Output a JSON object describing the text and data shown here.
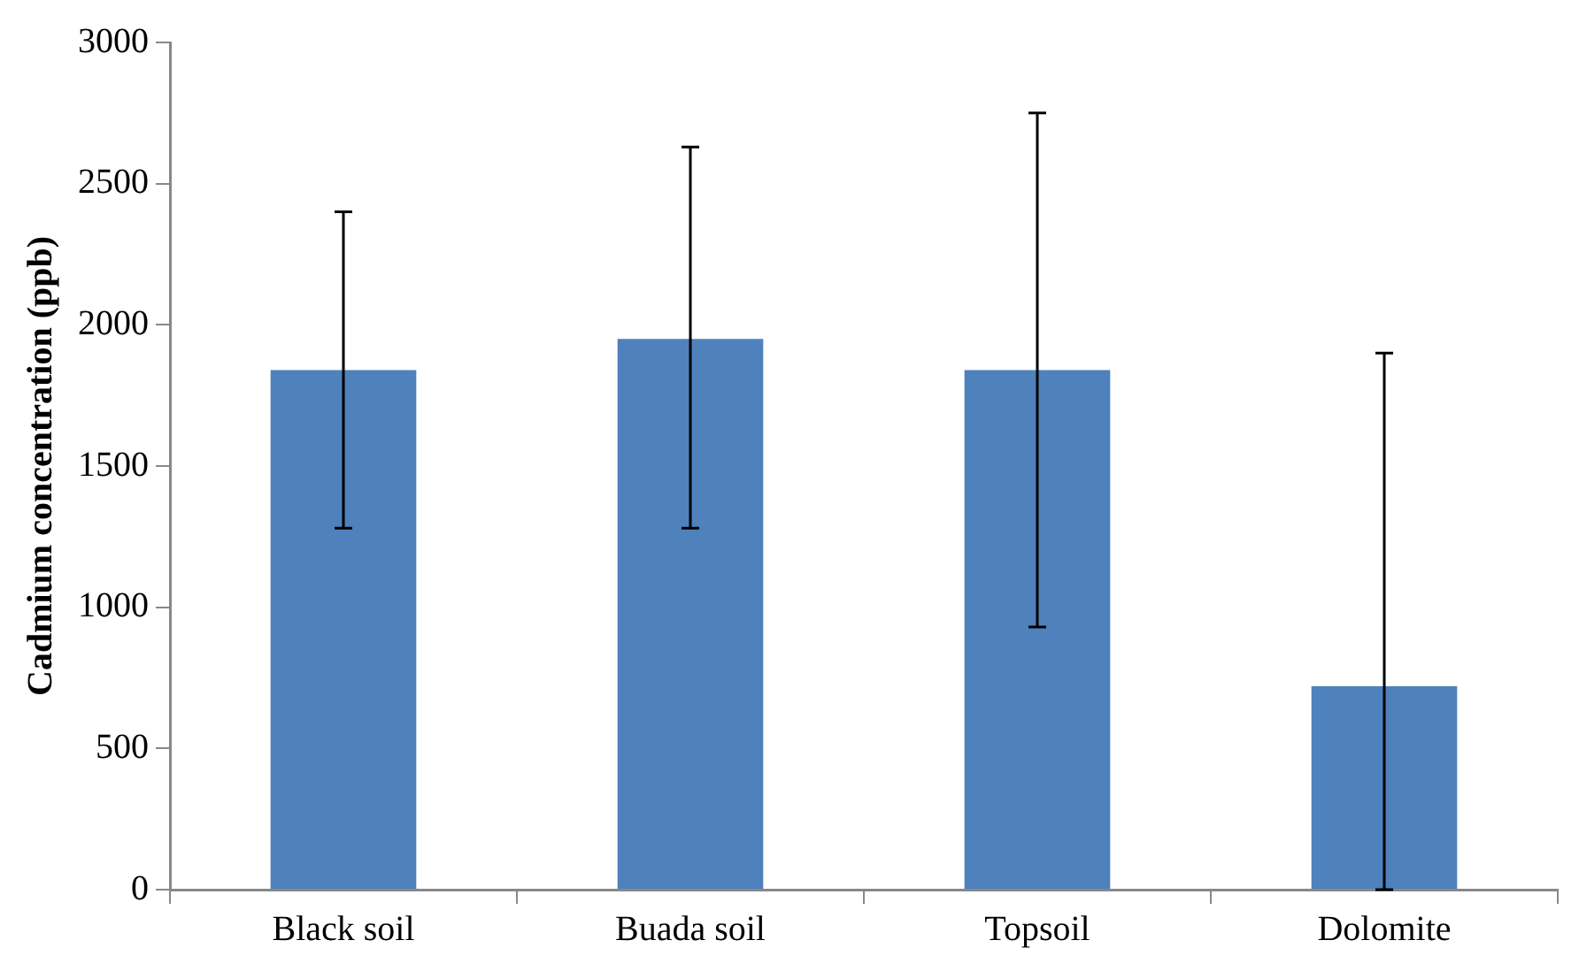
{
  "chart_data": {
    "type": "bar",
    "ylabel": "Cadmium concentration (ppb)",
    "categories": [
      "Black soil",
      "Buada soil",
      "Topsoil",
      "Dolomite"
    ],
    "values": [
      1840,
      1950,
      1840,
      720
    ],
    "errors": [
      [
        1280,
        2400
      ],
      [
        1280,
        2630
      ],
      [
        930,
        2750
      ],
      [
        0,
        1900
      ]
    ],
    "color": "#4f81bd",
    "ylim": [
      0,
      3000
    ],
    "yticks": [
      0,
      500,
      1000,
      1500,
      2000,
      2500,
      3000
    ],
    "grid": false,
    "legend": false
  }
}
